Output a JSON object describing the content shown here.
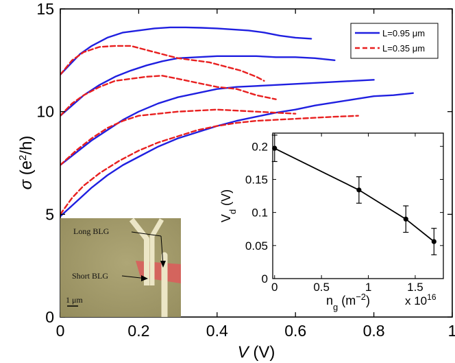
{
  "chart_data": [
    {
      "type": "line",
      "xlabel": "V (V)",
      "ylabel": "σ (e²/h)",
      "xlim": [
        0,
        1
      ],
      "ylim": [
        0,
        15
      ],
      "x_ticks": [
        "0",
        "0.2",
        "0.4",
        "0.6",
        "0.8",
        "1"
      ],
      "y_ticks": [
        "0",
        "5",
        "10",
        "15"
      ],
      "legend": {
        "position": "top-right",
        "entries": [
          "L=0.95 μm",
          "L=0.35 μm"
        ]
      },
      "colors": {
        "L=0.95 μm": "#1f1fe0",
        "L=0.35 μm": "#e81f1f"
      },
      "grid": false,
      "series": [
        {
          "name": "L=0.95 μm",
          "line_style": "solid",
          "curve": 1,
          "x": [
            0,
            0.02,
            0.05,
            0.08,
            0.12,
            0.16,
            0.2,
            0.24,
            0.28,
            0.32,
            0.36,
            0.4,
            0.44,
            0.48,
            0.52,
            0.56,
            0.6,
            0.64
          ],
          "y": [
            11.8,
            12.2,
            12.8,
            13.2,
            13.6,
            13.85,
            13.95,
            14.05,
            14.1,
            14.1,
            14.08,
            14.05,
            14.0,
            13.95,
            13.85,
            13.7,
            13.6,
            13.55
          ]
        },
        {
          "name": "L=0.95 μm",
          "line_style": "solid",
          "curve": 2,
          "x": [
            0,
            0.03,
            0.06,
            0.1,
            0.14,
            0.18,
            0.22,
            0.26,
            0.3,
            0.35,
            0.4,
            0.45,
            0.5,
            0.55,
            0.6,
            0.65,
            0.7
          ],
          "y": [
            9.8,
            10.3,
            10.8,
            11.3,
            11.7,
            12.0,
            12.25,
            12.45,
            12.6,
            12.65,
            12.7,
            12.7,
            12.7,
            12.65,
            12.65,
            12.6,
            12.5
          ]
        },
        {
          "name": "L=0.95 μm",
          "line_style": "solid",
          "curve": 3,
          "x": [
            0,
            0.04,
            0.08,
            0.12,
            0.16,
            0.2,
            0.25,
            0.3,
            0.35,
            0.4,
            0.45,
            0.5,
            0.55,
            0.6,
            0.65,
            0.7,
            0.75,
            0.8
          ],
          "y": [
            7.4,
            8.0,
            8.6,
            9.1,
            9.6,
            10.0,
            10.4,
            10.7,
            10.9,
            11.1,
            11.2,
            11.25,
            11.3,
            11.35,
            11.4,
            11.45,
            11.5,
            11.55
          ]
        },
        {
          "name": "L=0.95 μm",
          "line_style": "solid",
          "curve": 4,
          "x": [
            0,
            0.04,
            0.08,
            0.12,
            0.16,
            0.2,
            0.25,
            0.3,
            0.35,
            0.4,
            0.45,
            0.5,
            0.55,
            0.6,
            0.65,
            0.7,
            0.75,
            0.8,
            0.85,
            0.9
          ],
          "y": [
            4.9,
            5.6,
            6.3,
            6.9,
            7.4,
            7.8,
            8.3,
            8.7,
            9.0,
            9.3,
            9.55,
            9.75,
            9.95,
            10.1,
            10.3,
            10.45,
            10.6,
            10.75,
            10.8,
            10.9
          ]
        },
        {
          "name": "L=0.35 μm",
          "line_style": "dashed",
          "curve": 1,
          "x": [
            0,
            0.03,
            0.06,
            0.1,
            0.14,
            0.18,
            0.22,
            0.26,
            0.3,
            0.34,
            0.38,
            0.42,
            0.46,
            0.5,
            0.52
          ],
          "y": [
            11.8,
            12.5,
            12.9,
            13.15,
            13.2,
            13.2,
            13.0,
            12.8,
            12.6,
            12.5,
            12.4,
            12.2,
            12.0,
            11.7,
            11.5
          ]
        },
        {
          "name": "L=0.35 μm",
          "line_style": "dashed",
          "curve": 2,
          "x": [
            0,
            0.03,
            0.06,
            0.1,
            0.14,
            0.18,
            0.22,
            0.26,
            0.3,
            0.35,
            0.4,
            0.45,
            0.5,
            0.55
          ],
          "y": [
            9.8,
            10.4,
            10.8,
            11.2,
            11.5,
            11.6,
            11.7,
            11.75,
            11.6,
            11.4,
            11.2,
            11.1,
            10.8,
            10.6
          ]
        },
        {
          "name": "L=0.35 μm",
          "line_style": "dashed",
          "curve": 3,
          "x": [
            0,
            0.04,
            0.08,
            0.12,
            0.16,
            0.2,
            0.25,
            0.3,
            0.35,
            0.4,
            0.45,
            0.5,
            0.55,
            0.6
          ],
          "y": [
            7.4,
            8.1,
            8.7,
            9.2,
            9.55,
            9.8,
            9.9,
            10.0,
            10.05,
            10.1,
            10.05,
            10.0,
            9.95,
            9.9
          ]
        },
        {
          "name": "L=0.35 μm",
          "line_style": "dashed",
          "curve": 4,
          "x": [
            0,
            0.03,
            0.06,
            0.1,
            0.15,
            0.2,
            0.25,
            0.3,
            0.35,
            0.4,
            0.45,
            0.5,
            0.55,
            0.6,
            0.65,
            0.7,
            0.76
          ],
          "y": [
            5.0,
            5.8,
            6.4,
            7.0,
            7.6,
            8.1,
            8.5,
            8.8,
            9.1,
            9.3,
            9.45,
            9.55,
            9.6,
            9.65,
            9.7,
            9.75,
            9.8
          ]
        }
      ]
    },
    {
      "type": "scatter",
      "inset": true,
      "xlabel": "n_g (m^-2)",
      "ylabel": "V_d (V)",
      "x_multiplier": "x 10",
      "x_multiplier_exponent": "16",
      "xlim": [
        -0.02,
        1.8
      ],
      "ylim": [
        0,
        0.22
      ],
      "x_ticks": [
        "0",
        "0.5",
        "1",
        "1.5"
      ],
      "y_ticks": [
        "0",
        "0.05",
        "0.1",
        "0.15",
        "0.2"
      ],
      "connected": true,
      "error_bars": true,
      "x": [
        0,
        0.9,
        1.4,
        1.7
      ],
      "y": [
        0.197,
        0.134,
        0.09,
        0.056
      ],
      "y_error": [
        0.02,
        0.02,
        0.02,
        0.02
      ]
    }
  ],
  "photo": {
    "labels": [
      "Long BLG",
      "Short BLG"
    ],
    "scale_bar": "1 μm",
    "colors": {
      "background": "#a49c6c",
      "device": "#ece6c6",
      "bilayer": "#d8605c"
    }
  }
}
